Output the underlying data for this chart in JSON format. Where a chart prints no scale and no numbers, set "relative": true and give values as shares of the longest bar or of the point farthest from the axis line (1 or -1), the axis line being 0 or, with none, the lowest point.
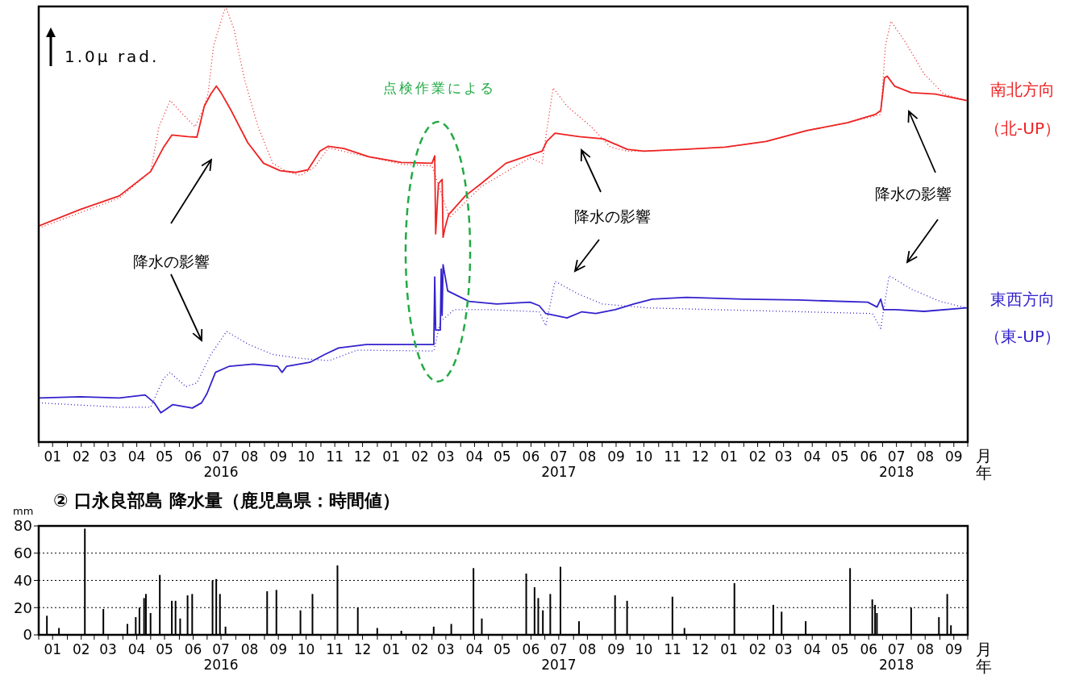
{
  "chart_data": [
    {
      "type": "line",
      "relative": true,
      "xlabel": "月年",
      "annotations": [
        "1.0μ rad.",
        "点検作業による",
        "降水の影響",
        "降水の影響",
        "降水の影響",
        "（北-UP）",
        "（東-UP）"
      ],
      "xlim": [
        "2016-01-01",
        "2018-10-01"
      ],
      "xticks": [
        {
          "value": "2016-01-01",
          "label": null
        },
        {
          "value": "2016-01-16",
          "label": "01"
        },
        {
          "value": "2016-02-01",
          "label": null
        },
        {
          "value": "2016-02-16",
          "label": "02"
        },
        {
          "value": "2016-03-01",
          "label": null
        },
        {
          "value": "2016-03-16",
          "label": "03"
        },
        {
          "value": "2016-04-01",
          "label": null
        },
        {
          "value": "2016-04-16",
          "label": "04"
        },
        {
          "value": "2016-05-01",
          "label": null
        },
        {
          "value": "2016-05-16",
          "label": "05"
        },
        {
          "value": "2016-06-01",
          "label": null
        },
        {
          "value": "2016-06-16",
          "label": "06"
        },
        {
          "value": "2016-07-01",
          "label": null
        },
        {
          "value": "2016-07-16",
          "label": "07\n2016"
        },
        {
          "value": "2016-08-01",
          "label": null
        },
        {
          "value": "2016-08-16",
          "label": "08"
        },
        {
          "value": "2016-09-01",
          "label": null
        },
        {
          "value": "2016-09-16",
          "label": "09"
        },
        {
          "value": "2016-10-01",
          "label": null
        },
        {
          "value": "2016-10-16",
          "label": "10"
        },
        {
          "value": "2016-11-01",
          "label": null
        },
        {
          "value": "2016-11-16",
          "label": "11"
        },
        {
          "value": "2016-12-01",
          "label": null
        },
        {
          "value": "2016-12-16",
          "label": "12"
        },
        {
          "value": "2017-01-01",
          "label": null
        },
        {
          "value": "2017-01-16",
          "label": "01"
        },
        {
          "value": "2017-02-01",
          "label": null
        },
        {
          "value": "2017-02-16",
          "label": "02"
        },
        {
          "value": "2017-03-01",
          "label": null
        },
        {
          "value": "2017-03-16",
          "label": "03"
        },
        {
          "value": "2017-04-01",
          "label": null
        },
        {
          "value": "2017-04-16",
          "label": "04"
        },
        {
          "value": "2017-05-01",
          "label": null
        },
        {
          "value": "2017-05-16",
          "label": "05"
        },
        {
          "value": "2017-06-01",
          "label": null
        },
        {
          "value": "2017-06-16",
          "label": "06"
        },
        {
          "value": "2017-07-01",
          "label": null
        },
        {
          "value": "2017-07-16",
          "label": "07\n2017"
        },
        {
          "value": "2017-08-01",
          "label": null
        },
        {
          "value": "2017-08-16",
          "label": "08"
        },
        {
          "value": "2017-09-01",
          "label": null
        },
        {
          "value": "2017-09-16",
          "label": "09"
        },
        {
          "value": "2017-10-01",
          "label": null
        },
        {
          "value": "2017-10-16",
          "label": "10"
        },
        {
          "value": "2017-11-01",
          "label": null
        },
        {
          "value": "2017-11-16",
          "label": "11"
        },
        {
          "value": "2017-12-01",
          "label": null
        },
        {
          "value": "2017-12-16",
          "label": "12"
        },
        {
          "value": "2018-01-01",
          "label": null
        },
        {
          "value": "2018-01-16",
          "label": "01"
        },
        {
          "value": "2018-02-01",
          "label": null
        },
        {
          "value": "2018-02-16",
          "label": "02"
        },
        {
          "value": "2018-03-01",
          "label": null
        },
        {
          "value": "2018-03-16",
          "label": "03"
        },
        {
          "value": "2018-04-01",
          "label": null
        },
        {
          "value": "2018-04-16",
          "label": "04"
        },
        {
          "value": "2018-05-01",
          "label": null
        },
        {
          "value": "2018-05-16",
          "label": "05"
        },
        {
          "value": "2018-06-01",
          "label": null
        },
        {
          "value": "2018-06-16",
          "label": "06"
        },
        {
          "value": "2018-07-01",
          "label": null
        },
        {
          "value": "2018-07-16",
          "label": "07\n2018"
        },
        {
          "value": "2018-08-01",
          "label": null
        },
        {
          "value": "2018-08-16",
          "label": "08"
        },
        {
          "value": "2018-09-01",
          "label": null
        },
        {
          "value": "2018-09-16",
          "label": "09"
        },
        {
          "value": "2018-10-01",
          "label": null
        }
      ],
      "series": [
        {
          "name": "南北方向",
          "color": "#ee2222",
          "line_style": "solid",
          "x": [
            "2016-01-01",
            "2016-02-15",
            "2016-03-28",
            "2016-05-01",
            "2016-05-15",
            "2016-05-24",
            "2016-06-10",
            "2016-06-20",
            "2016-06-28",
            "2016-07-05",
            "2016-07-11",
            "2016-07-16",
            "2016-07-27",
            "2016-08-14",
            "2016-08-31",
            "2016-09-18",
            "2016-10-05",
            "2016-10-18",
            "2016-10-31",
            "2016-11-09",
            "2016-11-26",
            "2016-12-23",
            "2017-01-27",
            "2017-03-01",
            "2017-03-04",
            "2017-03-05",
            "2017-03-08",
            "2017-03-12",
            "2017-03-13",
            "2017-03-15",
            "2017-03-19",
            "2017-04-06",
            "2017-04-23",
            "2017-05-20",
            "2017-06-15",
            "2017-06-28",
            "2017-07-03",
            "2017-07-12",
            "2017-08-07",
            "2017-09-02",
            "2017-09-28",
            "2017-10-16",
            "2017-11-29",
            "2018-01-12",
            "2018-02-25",
            "2018-04-10",
            "2018-05-24",
            "2018-06-23",
            "2018-06-29",
            "2018-07-03",
            "2018-07-06",
            "2018-07-14",
            "2018-08-01",
            "2018-08-27",
            "2018-09-30"
          ],
          "values": [
            0.496,
            0.534,
            0.565,
            0.621,
            0.677,
            0.705,
            0.701,
            0.7,
            0.771,
            0.799,
            0.817,
            0.802,
            0.761,
            0.687,
            0.64,
            0.623,
            0.619,
            0.625,
            0.668,
            0.679,
            0.674,
            0.655,
            0.642,
            0.64,
            0.657,
            0.478,
            0.593,
            0.603,
            0.47,
            0.491,
            0.522,
            0.565,
            0.593,
            0.64,
            0.659,
            0.668,
            0.69,
            0.709,
            0.701,
            0.696,
            0.672,
            0.668,
            0.672,
            0.677,
            0.69,
            0.715,
            0.733,
            0.752,
            0.761,
            0.836,
            0.84,
            0.817,
            0.802,
            0.799,
            0.784
          ]
        },
        {
          "color": "#ee2222",
          "line_style": "dotted",
          "x": [
            "2016-01-01",
            "2016-03-28",
            "2016-05-01",
            "2016-05-10",
            "2016-05-22",
            "2016-06-05",
            "2016-06-18",
            "2016-06-26",
            "2016-07-02",
            "2016-07-08",
            "2016-07-21",
            "2016-07-30",
            "2016-08-10",
            "2016-08-25",
            "2016-09-10",
            "2016-09-25",
            "2016-10-10",
            "2016-10-25",
            "2016-11-09",
            "2017-01-27",
            "2017-03-01",
            "2017-03-20",
            "2017-04-23",
            "2017-06-15",
            "2017-06-28",
            "2017-07-05",
            "2017-07-10",
            "2017-07-25",
            "2017-08-20",
            "2017-09-10",
            "2017-09-28",
            "2017-10-16",
            "2017-11-29",
            "2018-01-12",
            "2018-02-25",
            "2018-04-10",
            "2018-05-24",
            "2018-06-29",
            "2018-07-04",
            "2018-07-10",
            "2018-07-25",
            "2018-08-15",
            "2018-09-05",
            "2018-09-30"
          ],
          "values": [
            0.491,
            0.56,
            0.621,
            0.724,
            0.784,
            0.752,
            0.724,
            0.761,
            0.799,
            0.91,
            1,
            0.948,
            0.836,
            0.724,
            0.64,
            0.621,
            0.612,
            0.631,
            0.675,
            0.638,
            0.634,
            0.515,
            0.586,
            0.653,
            0.64,
            0.743,
            0.813,
            0.771,
            0.724,
            0.677,
            0.668,
            0.668,
            0.672,
            0.677,
            0.69,
            0.715,
            0.733,
            0.752,
            0.91,
            0.966,
            0.92,
            0.845,
            0.799,
            0.784
          ]
        },
        {
          "name": "東西方向",
          "color": "#3322cc",
          "line_style": "solid",
          "x": [
            "2016-01-01",
            "2016-02-15",
            "2016-03-28",
            "2016-04-25",
            "2016-05-05",
            "2016-05-12",
            "2016-05-25",
            "2016-06-15",
            "2016-06-25",
            "2016-07-01",
            "2016-07-10",
            "2016-07-25",
            "2016-08-20",
            "2016-09-15",
            "2016-09-20",
            "2016-09-25",
            "2016-10-20",
            "2016-11-05",
            "2016-11-20",
            "2016-12-20",
            "2017-01-25",
            "2017-03-03",
            "2017-03-04",
            "2017-03-05",
            "2017-03-10",
            "2017-03-11",
            "2017-03-12",
            "2017-03-13",
            "2017-03-18",
            "2017-04-10",
            "2017-05-10",
            "2017-06-15",
            "2017-06-25",
            "2017-07-02",
            "2017-07-25",
            "2017-08-10",
            "2017-08-25",
            "2017-09-15",
            "2017-10-05",
            "2017-10-25",
            "2017-12-01",
            "2018-02-01",
            "2018-04-01",
            "2018-06-15",
            "2018-06-25",
            "2018-06-29",
            "2018-07-02",
            "2018-07-15",
            "2018-08-15",
            "2018-09-30"
          ],
          "values": [
            0.101,
            0.104,
            0.101,
            0.108,
            0.09,
            0.067,
            0.086,
            0.078,
            0.09,
            0.112,
            0.16,
            0.174,
            0.179,
            0.174,
            0.16,
            0.174,
            0.183,
            0.201,
            0.216,
            0.224,
            0.224,
            0.224,
            0.379,
            0.257,
            0.257,
            0.397,
            0.291,
            0.407,
            0.347,
            0.323,
            0.317,
            0.321,
            0.313,
            0.295,
            0.285,
            0.299,
            0.295,
            0.304,
            0.317,
            0.328,
            0.332,
            0.328,
            0.326,
            0.321,
            0.31,
            0.328,
            0.304,
            0.304,
            0.3,
            0.308
          ]
        },
        {
          "color": "#3322cc",
          "line_style": "dotted",
          "x": [
            "2016-01-01",
            "2016-03-28",
            "2016-05-01",
            "2016-05-15",
            "2016-05-22",
            "2016-06-08",
            "2016-06-20",
            "2016-07-05",
            "2016-07-22",
            "2016-08-15",
            "2016-09-10",
            "2016-10-10",
            "2016-11-10",
            "2016-12-10",
            "2017-03-03",
            "2017-03-10",
            "2017-03-25",
            "2017-05-01",
            "2017-06-25",
            "2017-07-02",
            "2017-07-12",
            "2017-08-05",
            "2017-09-01",
            "2017-10-20",
            "2018-01-01",
            "2018-06-20",
            "2018-06-29",
            "2018-07-08",
            "2018-08-01",
            "2018-09-01",
            "2018-09-30"
          ],
          "values": [
            0.09,
            0.08,
            0.08,
            0.146,
            0.16,
            0.127,
            0.136,
            0.201,
            0.254,
            0.224,
            0.201,
            0.192,
            0.187,
            0.211,
            0.209,
            0.276,
            0.304,
            0.304,
            0.299,
            0.267,
            0.369,
            0.341,
            0.317,
            0.308,
            0.304,
            0.295,
            0.261,
            0.382,
            0.351,
            0.323,
            0.308
          ]
        }
      ]
    },
    {
      "type": "bar",
      "title": "② 口永良部島 降水量（鹿児島県：時間値）",
      "ylabel": "mm",
      "xlabel": "月年",
      "grid": "y",
      "color": "#000000",
      "xlim": [
        "2016-01-01",
        "2018-10-01"
      ],
      "ylim": [
        0,
        80
      ],
      "yticks": [
        0,
        20,
        40,
        60,
        80
      ],
      "xticks": [
        {
          "value": "2016-01-01",
          "label": null
        },
        {
          "value": "2016-01-16",
          "label": "01"
        },
        {
          "value": "2016-02-01",
          "label": null
        },
        {
          "value": "2016-02-16",
          "label": "02"
        },
        {
          "value": "2016-03-01",
          "label": null
        },
        {
          "value": "2016-03-16",
          "label": "03"
        },
        {
          "value": "2016-04-01",
          "label": null
        },
        {
          "value": "2016-04-16",
          "label": "04"
        },
        {
          "value": "2016-05-01",
          "label": null
        },
        {
          "value": "2016-05-16",
          "label": "05"
        },
        {
          "value": "2016-06-01",
          "label": null
        },
        {
          "value": "2016-06-16",
          "label": "06"
        },
        {
          "value": "2016-07-01",
          "label": null
        },
        {
          "value": "2016-07-16",
          "label": "07\n2016"
        },
        {
          "value": "2016-08-01",
          "label": null
        },
        {
          "value": "2016-08-16",
          "label": "08"
        },
        {
          "value": "2016-09-01",
          "label": null
        },
        {
          "value": "2016-09-16",
          "label": "09"
        },
        {
          "value": "2016-10-01",
          "label": null
        },
        {
          "value": "2016-10-16",
          "label": "10"
        },
        {
          "value": "2016-11-01",
          "label": null
        },
        {
          "value": "2016-11-16",
          "label": "11"
        },
        {
          "value": "2016-12-01",
          "label": null
        },
        {
          "value": "2016-12-16",
          "label": "12"
        },
        {
          "value": "2017-01-01",
          "label": null
        },
        {
          "value": "2017-01-16",
          "label": "01"
        },
        {
          "value": "2017-02-01",
          "label": null
        },
        {
          "value": "2017-02-16",
          "label": "02"
        },
        {
          "value": "2017-03-01",
          "label": null
        },
        {
          "value": "2017-03-16",
          "label": "03"
        },
        {
          "value": "2017-04-01",
          "label": null
        },
        {
          "value": "2017-04-16",
          "label": "04"
        },
        {
          "value": "2017-05-01",
          "label": null
        },
        {
          "value": "2017-05-16",
          "label": "05"
        },
        {
          "value": "2017-06-01",
          "label": null
        },
        {
          "value": "2017-06-16",
          "label": "06"
        },
        {
          "value": "2017-07-01",
          "label": null
        },
        {
          "value": "2017-07-16",
          "label": "07\n2017"
        },
        {
          "value": "2017-08-01",
          "label": null
        },
        {
          "value": "2017-08-16",
          "label": "08"
        },
        {
          "value": "2017-09-01",
          "label": null
        },
        {
          "value": "2017-09-16",
          "label": "09"
        },
        {
          "value": "2017-10-01",
          "label": null
        },
        {
          "value": "2017-10-16",
          "label": "10"
        },
        {
          "value": "2017-11-01",
          "label": null
        },
        {
          "value": "2017-11-16",
          "label": "11"
        },
        {
          "value": "2017-12-01",
          "label": null
        },
        {
          "value": "2017-12-16",
          "label": "12"
        },
        {
          "value": "2018-01-01",
          "label": null
        },
        {
          "value": "2018-01-16",
          "label": "01"
        },
        {
          "value": "2018-02-01",
          "label": null
        },
        {
          "value": "2018-02-16",
          "label": "02"
        },
        {
          "value": "2018-03-01",
          "label": null
        },
        {
          "value": "2018-03-16",
          "label": "03"
        },
        {
          "value": "2018-04-01",
          "label": null
        },
        {
          "value": "2018-04-16",
          "label": "04"
        },
        {
          "value": "2018-05-01",
          "label": null
        },
        {
          "value": "2018-05-16",
          "label": "05"
        },
        {
          "value": "2018-06-01",
          "label": null
        },
        {
          "value": "2018-06-16",
          "label": "06"
        },
        {
          "value": "2018-07-01",
          "label": null
        },
        {
          "value": "2018-07-16",
          "label": "07\n2018"
        },
        {
          "value": "2018-08-01",
          "label": null
        },
        {
          "value": "2018-08-16",
          "label": "08"
        },
        {
          "value": "2018-09-01",
          "label": null
        },
        {
          "value": "2018-09-16",
          "label": "09"
        },
        {
          "value": "2018-10-01",
          "label": null
        }
      ],
      "x": [
        "2016-01-10",
        "2016-01-23",
        "2016-02-20",
        "2016-03-11",
        "2016-04-06",
        "2016-04-15",
        "2016-04-19",
        "2016-04-24",
        "2016-04-26",
        "2016-05-01",
        "2016-05-11",
        "2016-05-24",
        "2016-05-28",
        "2016-06-02",
        "2016-06-10",
        "2016-06-15",
        "2016-07-07",
        "2016-07-11",
        "2016-07-15",
        "2016-07-21",
        "2016-09-04",
        "2016-09-14",
        "2016-10-10",
        "2016-10-23",
        "2016-11-19",
        "2016-12-11",
        "2017-01-01",
        "2017-01-27",
        "2017-03-03",
        "2017-03-22",
        "2017-04-15",
        "2017-04-24",
        "2017-06-11",
        "2017-06-20",
        "2017-06-24",
        "2017-06-29",
        "2017-07-07",
        "2017-07-18",
        "2017-08-07",
        "2017-09-15",
        "2017-09-28",
        "2017-11-16",
        "2017-11-29",
        "2018-01-22",
        "2018-03-05",
        "2018-03-14",
        "2018-04-09",
        "2018-05-27",
        "2018-06-20",
        "2018-06-23",
        "2018-06-25",
        "2018-08-01",
        "2018-08-31",
        "2018-09-09",
        "2018-09-13"
      ],
      "values": [
        14,
        5,
        78,
        19,
        8,
        13,
        20,
        27,
        30,
        16,
        44,
        25,
        25,
        12,
        29,
        30,
        40,
        41,
        30,
        6,
        32,
        33,
        18,
        30,
        51,
        20,
        5,
        3,
        6,
        8,
        49,
        12,
        45,
        35,
        27,
        18,
        30,
        50,
        10,
        29,
        25,
        28,
        5,
        38,
        22,
        17,
        10,
        49,
        26,
        22,
        16,
        20,
        13,
        30,
        7
      ]
    }
  ]
}
